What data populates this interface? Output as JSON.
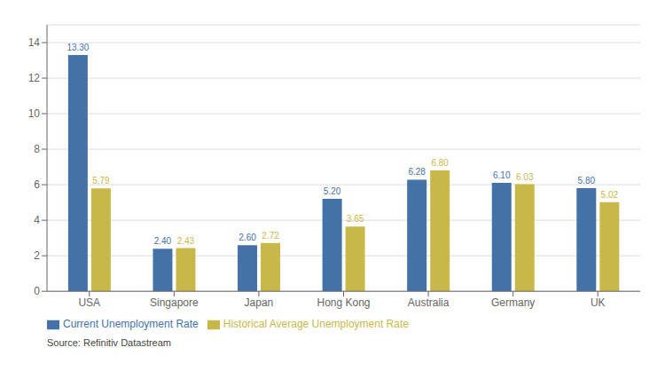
{
  "chart_data": {
    "type": "bar",
    "categories": [
      "USA",
      "Singapore",
      "Japan",
      "Hong Kong",
      "Australia",
      "Germany",
      "UK"
    ],
    "series": [
      {
        "name": "Current Unemployment Rate",
        "color": "#4472a8",
        "values": [
          13.3,
          2.4,
          2.6,
          5.2,
          6.28,
          6.1,
          5.8
        ],
        "value_labels": [
          "13.30",
          "2.40",
          "2.60",
          "5.20",
          "6.28",
          "6.10",
          "5.80"
        ]
      },
      {
        "name": "Historical Average Unemployment Rate",
        "color": "#c8b84a",
        "values": [
          5.79,
          2.43,
          2.72,
          3.65,
          6.8,
          6.03,
          5.02
        ],
        "value_labels": [
          "5.79",
          "2.43",
          "2.72",
          "3.65",
          "6.80",
          "6.03",
          "5.02"
        ]
      }
    ],
    "ylim": [
      0,
      15
    ],
    "yticks": [
      0,
      2,
      4,
      6,
      8,
      10,
      12,
      14
    ],
    "grid": true,
    "legend": "bottom",
    "data_labels": true,
    "annotations": [
      "Source: Refinitiv Datastream"
    ]
  }
}
